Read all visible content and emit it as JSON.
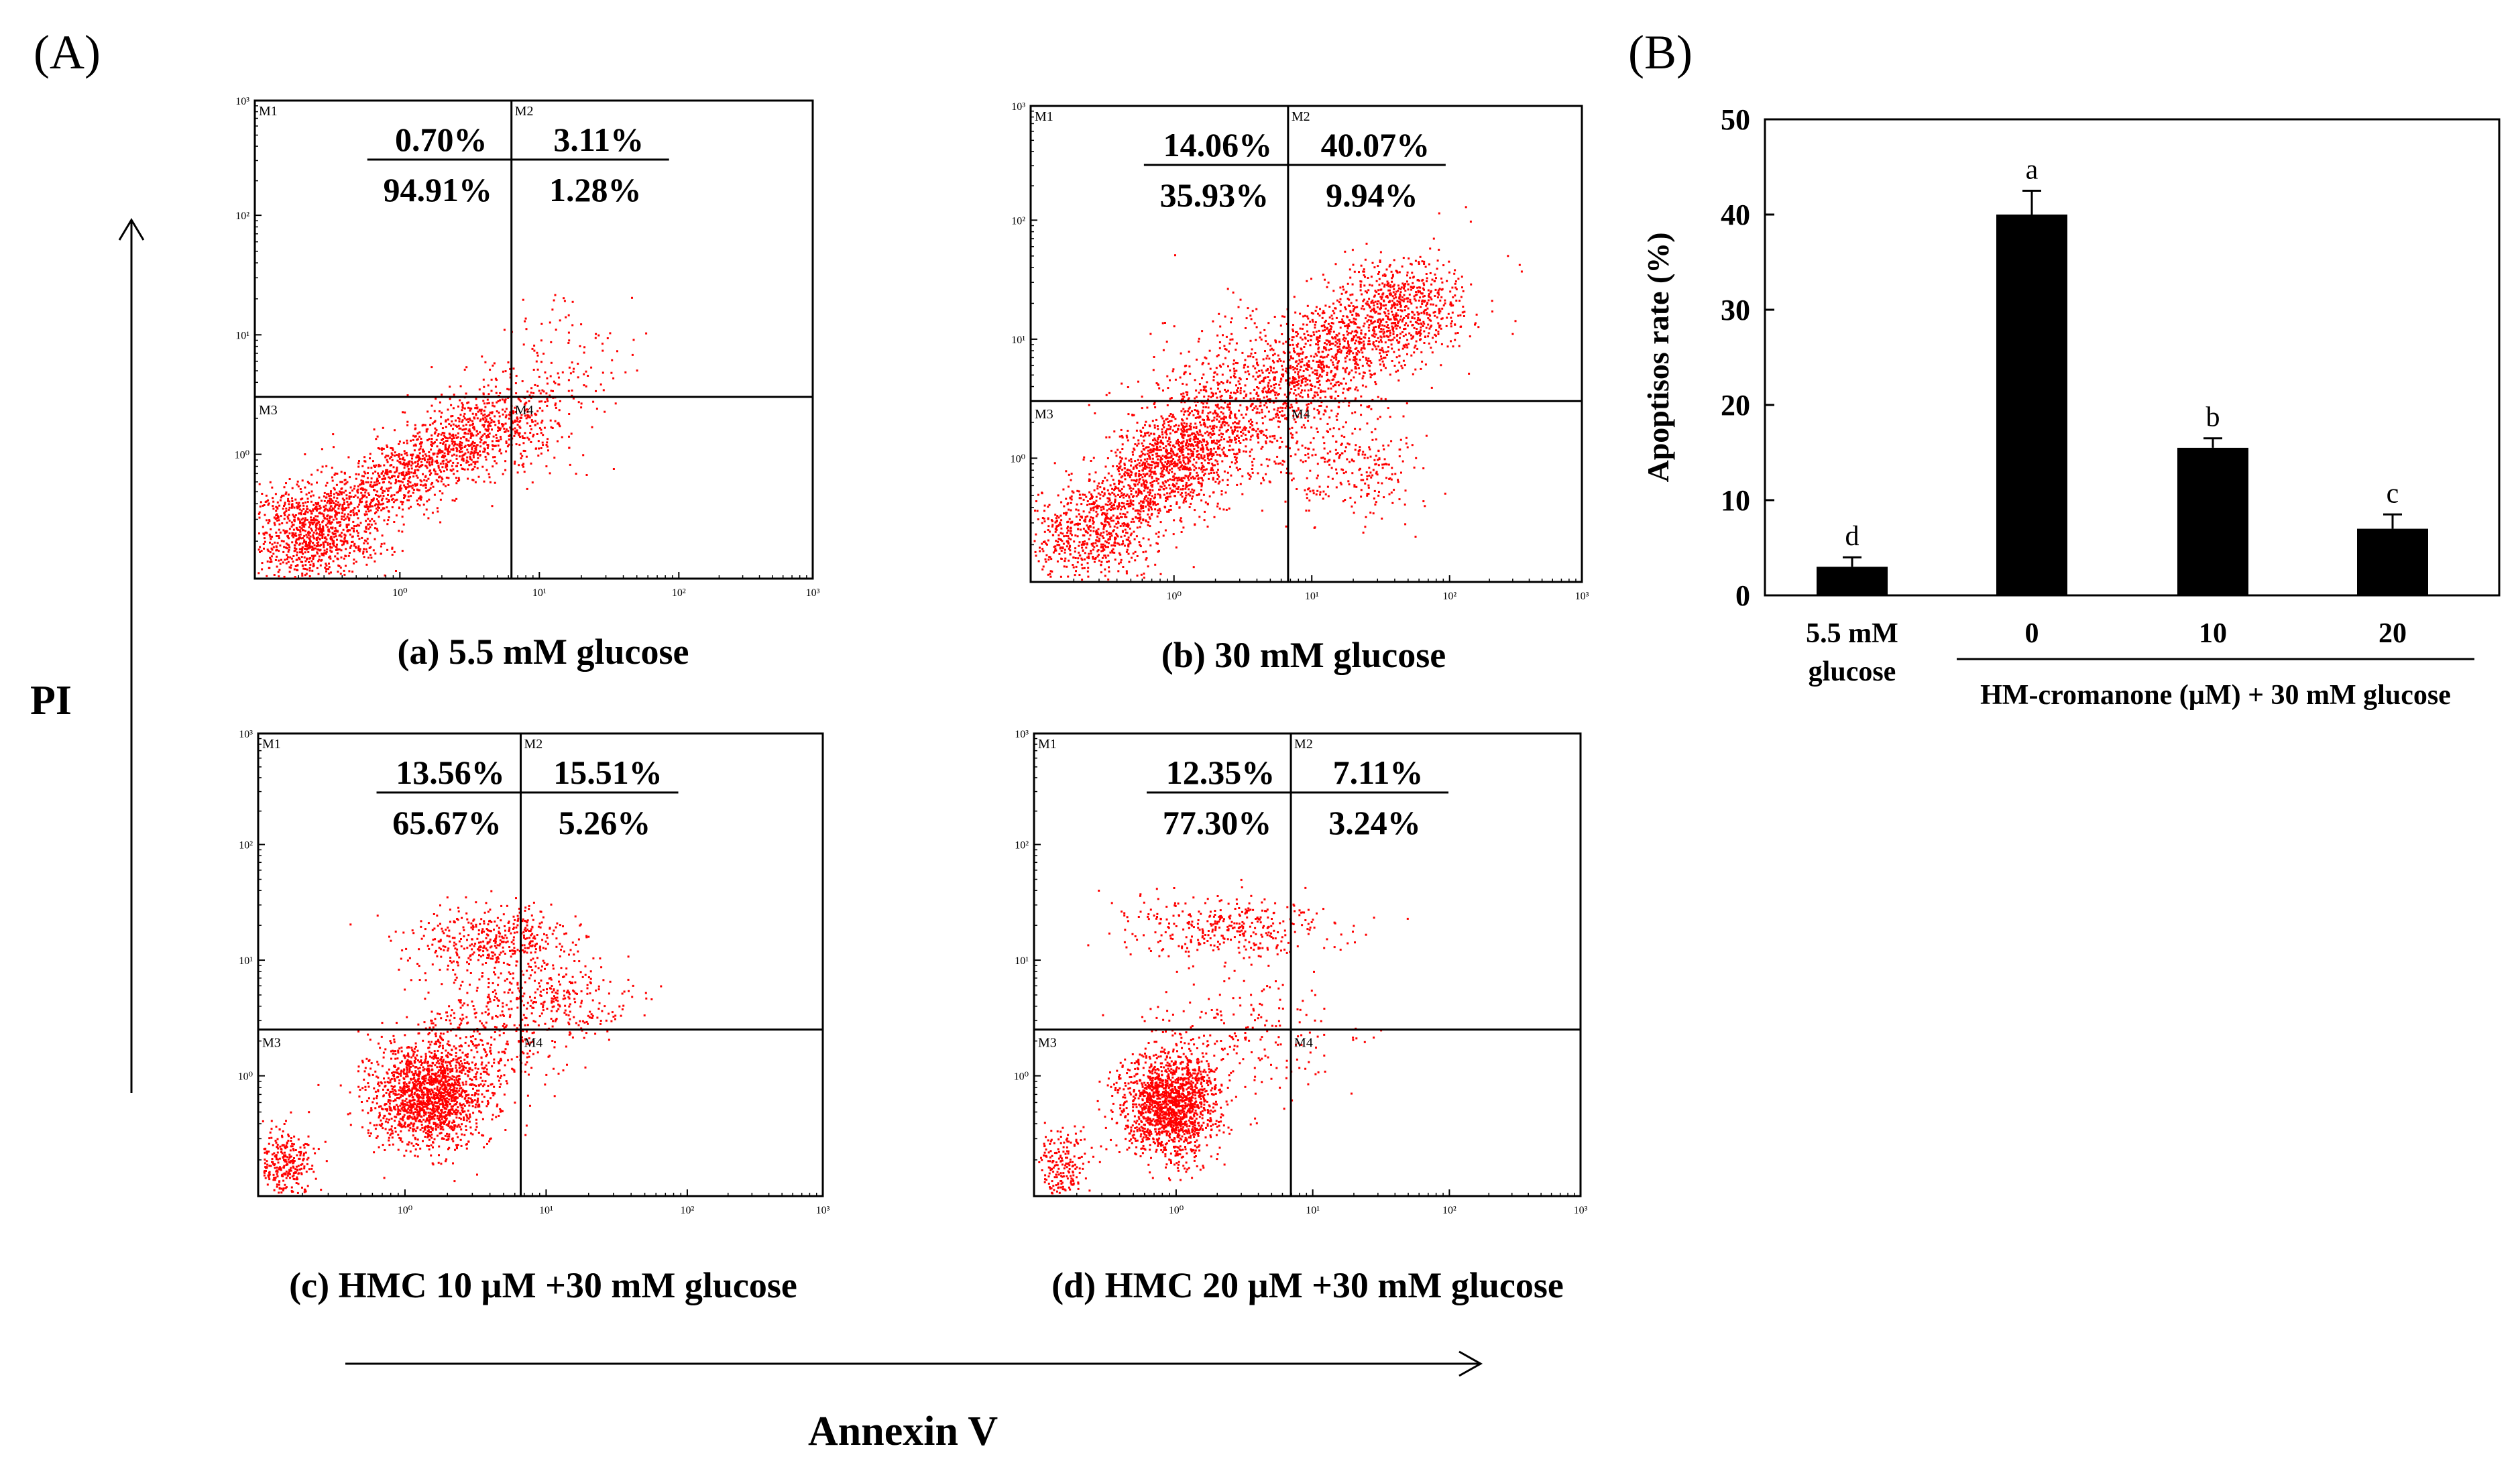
{
  "panel_labels": {
    "a": "(A)",
    "b": "(B)"
  },
  "axis_titles": {
    "y": "PI",
    "x": "Annexin V"
  },
  "decade_labels": [
    "10⁰",
    "10¹",
    "10²",
    "10³"
  ],
  "region_labels": [
    "M1",
    "M2",
    "M3",
    "M4"
  ],
  "colors": {
    "dots": "#ff0000",
    "axes": "#000000",
    "bar": "#000000"
  },
  "chart_data": [
    {
      "type": "scatter",
      "title": "(a) 5.5 mM glucose",
      "quadrants": {
        "M1": "0.70%",
        "M2": "3.11%",
        "M3": "94.91%",
        "M4": "1.28%"
      },
      "clusters": [
        {
          "cx": 0.1,
          "cy": 0.1,
          "sx": 0.06,
          "sy": 0.05,
          "n": 900
        },
        {
          "cx": 0.3,
          "cy": 0.24,
          "sx": 0.11,
          "sy": 0.08,
          "n": 1200,
          "corr": 0.8
        },
        {
          "cx": 0.45,
          "cy": 0.32,
          "sx": 0.06,
          "sy": 0.05,
          "n": 250
        },
        {
          "cx": 0.55,
          "cy": 0.48,
          "sx": 0.05,
          "sy": 0.06,
          "n": 80
        }
      ]
    },
    {
      "type": "scatter",
      "title": "(b) 30 mM glucose",
      "quadrants": {
        "M1": "14.06%",
        "M2": "40.07%",
        "M3": "35.93%",
        "M4": "9.94%"
      },
      "clusters": [
        {
          "cx": 0.25,
          "cy": 0.25,
          "sx": 0.07,
          "sy": 0.07,
          "n": 1300,
          "corr": 0.5
        },
        {
          "cx": 0.1,
          "cy": 0.1,
          "sx": 0.06,
          "sy": 0.05,
          "n": 600
        },
        {
          "cx": 0.55,
          "cy": 0.48,
          "sx": 0.09,
          "sy": 0.08,
          "n": 1000,
          "corr": 0.6
        },
        {
          "cx": 0.68,
          "cy": 0.58,
          "sx": 0.06,
          "sy": 0.05,
          "n": 500
        },
        {
          "cx": 0.38,
          "cy": 0.38,
          "sx": 0.08,
          "sy": 0.09,
          "n": 500
        },
        {
          "cx": 0.58,
          "cy": 0.25,
          "sx": 0.06,
          "sy": 0.06,
          "n": 250
        }
      ]
    },
    {
      "type": "scatter",
      "title": "(c) HMC 10 µM +30 mM glucose",
      "quadrants": {
        "M1": "13.56%",
        "M2": "15.51%",
        "M3": "65.67%",
        "M4": "5.26%"
      },
      "clusters": [
        {
          "cx": 0.3,
          "cy": 0.22,
          "sx": 0.05,
          "sy": 0.055,
          "n": 1600
        },
        {
          "cx": 0.05,
          "cy": 0.07,
          "sx": 0.025,
          "sy": 0.04,
          "n": 300
        },
        {
          "cx": 0.42,
          "cy": 0.55,
          "sx": 0.07,
          "sy": 0.04,
          "n": 450
        },
        {
          "cx": 0.5,
          "cy": 0.42,
          "sx": 0.08,
          "sy": 0.05,
          "n": 300
        },
        {
          "cx": 0.38,
          "cy": 0.32,
          "sx": 0.07,
          "sy": 0.06,
          "n": 300
        }
      ]
    },
    {
      "type": "scatter",
      "title": "(d) HMC 20 µM +30 mM glucose",
      "quadrants": {
        "M1": "12.35%",
        "M2": "7.11%",
        "M3": "77.30%",
        "M4": "3.24%"
      },
      "clusters": [
        {
          "cx": 0.25,
          "cy": 0.2,
          "sx": 0.045,
          "sy": 0.06,
          "n": 1600
        },
        {
          "cx": 0.05,
          "cy": 0.07,
          "sx": 0.025,
          "sy": 0.04,
          "n": 200
        },
        {
          "cx": 0.35,
          "cy": 0.58,
          "sx": 0.1,
          "sy": 0.035,
          "n": 350
        },
        {
          "cx": 0.4,
          "cy": 0.35,
          "sx": 0.09,
          "sy": 0.07,
          "n": 200
        }
      ]
    },
    {
      "type": "bar",
      "categories": [
        "5.5 mM\nglucose",
        "0",
        "10",
        "20"
      ],
      "values": [
        3,
        40,
        15.5,
        7
      ],
      "errors": [
        1,
        2.5,
        1,
        1.5
      ],
      "letters": [
        "d",
        "a",
        "b",
        "c"
      ],
      "ylabel": "Apoptisos rate (%)",
      "yticks": [
        0,
        10,
        20,
        30,
        40,
        50
      ],
      "ylim": [
        0,
        50
      ],
      "group_label": "HM-cromanone (µM) + 30 mM glucose"
    }
  ]
}
